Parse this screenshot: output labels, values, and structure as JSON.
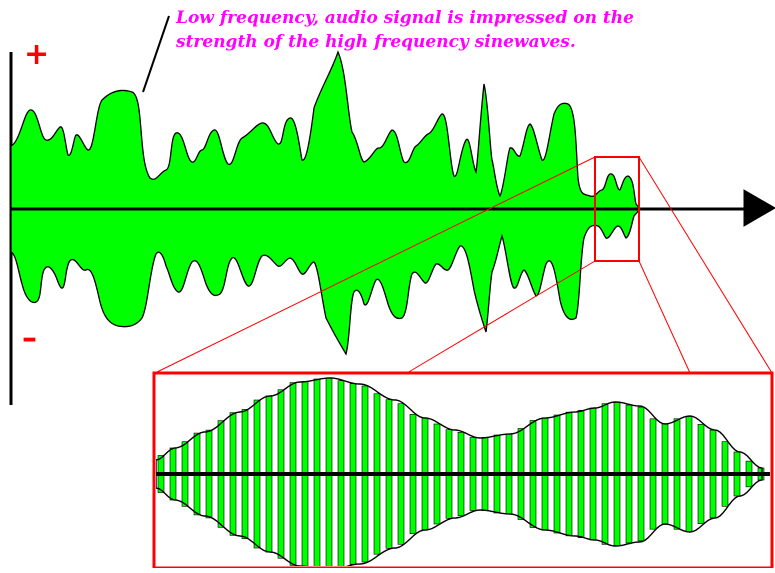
{
  "caption": {
    "text": "Low frequency, audio signal is impressed on the\nstrength of the high frequency sinewaves."
  },
  "axis": {
    "positive_label": "+",
    "negative_label": "–"
  },
  "colors": {
    "caption": "#ff00ff",
    "signal_fill": "#00ff00",
    "outline": "#000000",
    "zoom_frame": "#ff0000",
    "sign_labels": "#ff0000",
    "background": "#ffffff"
  },
  "icons": {
    "axis_arrow": "arrowhead-right-icon"
  }
}
